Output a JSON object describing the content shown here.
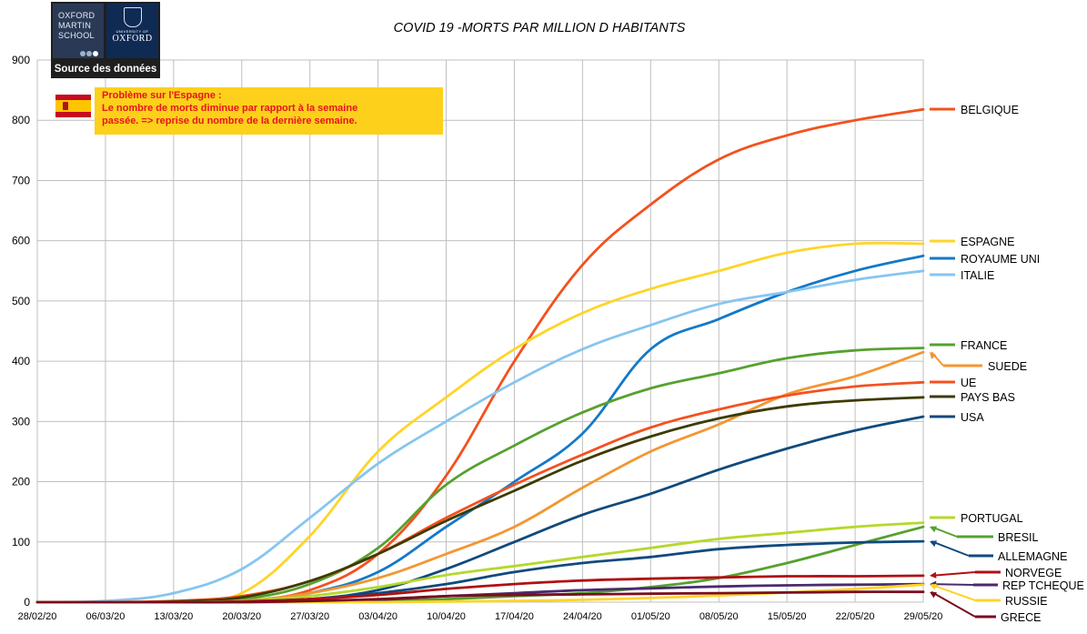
{
  "source_logo": {
    "oms_lines": [
      "OXFORD",
      "MARTIN",
      "SCHOOL"
    ],
    "ox_small": "UNIVERSITY OF",
    "ox_name": "OXFORD",
    "source_label": "Source des données"
  },
  "note": {
    "line1": "Problème sur l'Espagne :",
    "line2": "Le nombre de morts diminue par rapport à la semaine",
    "line3": "passée.  => reprise du nombre  de la dernière semaine."
  },
  "colors": {
    "grid": "#bfbfbf",
    "axis_text": "#000000"
  },
  "chart_data": {
    "type": "line",
    "title": "COVID 19 -MORTS PAR MILLION D HABITANTS",
    "xlabel": "",
    "ylabel": "",
    "ylim": [
      0,
      900
    ],
    "yticks": [
      0,
      100,
      200,
      300,
      400,
      500,
      600,
      700,
      800,
      900
    ],
    "grid": true,
    "x_index": [
      0,
      7,
      14,
      21,
      28,
      35,
      42,
      49,
      56,
      63,
      70,
      77,
      84,
      91
    ],
    "categories": [
      "28/02/20",
      "06/03/20",
      "13/03/20",
      "20/03/20",
      "27/03/20",
      "03/04/20",
      "10/04/20",
      "17/04/20",
      "24/04/20",
      "01/05/20",
      "08/05/20",
      "15/05/20",
      "22/05/20",
      "29/05/20"
    ],
    "series": [
      {
        "name": "BELGIQUE",
        "color": "#f4511e",
        "values": [
          0,
          0,
          0,
          2,
          20,
          80,
          210,
          400,
          560,
          660,
          735,
          775,
          800,
          818
        ]
      },
      {
        "name": "ESPAGNE",
        "color": "#ffd428",
        "values": [
          0,
          0,
          2,
          15,
          110,
          250,
          340,
          420,
          480,
          520,
          550,
          580,
          595,
          595
        ]
      },
      {
        "name": "ROYAUME UNI",
        "color": "#1479c8",
        "values": [
          0,
          0,
          0,
          2,
          15,
          50,
          125,
          200,
          280,
          420,
          470,
          515,
          550,
          575
        ]
      },
      {
        "name": "ITALIE",
        "color": "#86c5f0",
        "values": [
          0,
          2,
          15,
          55,
          140,
          230,
          300,
          365,
          420,
          460,
          495,
          515,
          535,
          550
        ]
      },
      {
        "name": "FRANCE",
        "color": "#56a12e",
        "values": [
          0,
          0,
          1,
          5,
          30,
          90,
          195,
          260,
          315,
          355,
          380,
          405,
          418,
          422
        ]
      },
      {
        "name": "SUEDE",
        "color": "#f39632",
        "values": [
          0,
          0,
          0,
          2,
          15,
          40,
          80,
          125,
          190,
          250,
          295,
          345,
          375,
          415
        ]
      },
      {
        "name": "UE",
        "color": "#f4511e",
        "values": [
          0,
          0,
          2,
          10,
          35,
          80,
          140,
          195,
          245,
          290,
          320,
          343,
          358,
          365
        ]
      },
      {
        "name": "PAYS BAS",
        "color": "#3d3b00",
        "values": [
          0,
          0,
          1,
          8,
          35,
          80,
          135,
          185,
          235,
          275,
          305,
          325,
          335,
          340
        ]
      },
      {
        "name": "USA",
        "color": "#0f4a7d",
        "values": [
          0,
          0,
          0,
          1,
          5,
          20,
          55,
          100,
          145,
          180,
          220,
          255,
          285,
          308
        ]
      },
      {
        "name": "PORTUGAL",
        "color": "#b5d82a",
        "values": [
          0,
          0,
          0,
          2,
          10,
          25,
          45,
          60,
          75,
          90,
          105,
          115,
          125,
          132
        ]
      },
      {
        "name": "BRESIL",
        "color": "#56a12e",
        "values": [
          0,
          0,
          0,
          0,
          1,
          2,
          5,
          10,
          15,
          25,
          40,
          65,
          95,
          125
        ]
      },
      {
        "name": "ALLEMAGNE",
        "color": "#0f4a7d",
        "values": [
          0,
          0,
          0,
          1,
          5,
          15,
          30,
          50,
          65,
          75,
          88,
          95,
          99,
          101
        ]
      },
      {
        "name": "NORVEGE",
        "color": "#b01012",
        "values": [
          0,
          0,
          0,
          1,
          5,
          12,
          22,
          30,
          36,
          39,
          41,
          43,
          43,
          44
        ]
      },
      {
        "name": "REP TCHEQUE",
        "color": "#4a2a6e",
        "values": [
          0,
          0,
          0,
          0,
          1,
          4,
          10,
          15,
          20,
          23,
          26,
          28,
          29,
          30
        ]
      },
      {
        "name": "RUSSIE",
        "color": "#ffd428",
        "values": [
          0,
          0,
          0,
          0,
          0,
          0,
          1,
          2,
          4,
          7,
          11,
          16,
          22,
          29
        ]
      },
      {
        "name": "GRECE",
        "color": "#7a0e1e",
        "values": [
          0,
          0,
          0,
          0,
          2,
          5,
          10,
          12,
          13,
          14,
          15,
          16,
          17,
          17
        ]
      }
    ]
  }
}
